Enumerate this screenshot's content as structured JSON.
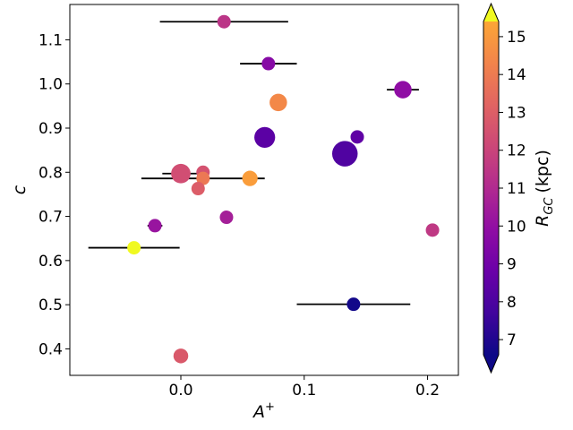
{
  "chart_data": {
    "type": "scatter",
    "title": "",
    "xlabel_base": "A",
    "xlabel_sup": "+",
    "ylabel": "c",
    "xlim": [
      -0.09,
      0.225
    ],
    "ylim": [
      0.34,
      1.18
    ],
    "xticks": [
      0.0,
      0.1,
      0.2
    ],
    "xtick_labels": [
      "0.0",
      "0.1",
      "0.2"
    ],
    "yticks": [
      0.4,
      0.5,
      0.6,
      0.7,
      0.8,
      0.9,
      1.0,
      1.1
    ],
    "ytick_labels": [
      "0.4",
      "0.5",
      "0.6",
      "0.7",
      "0.8",
      "0.9",
      "1.0",
      "1.1"
    ],
    "colorbar": {
      "label_base": "R",
      "label_sub": "GC",
      "label_unit": "(kpc)",
      "colormap": "plasma",
      "range": [
        6.6,
        15.4
      ],
      "ticks": [
        7,
        8,
        9,
        10,
        11,
        12,
        13,
        14,
        15
      ],
      "tick_labels": [
        "7",
        "8",
        "9",
        "10",
        "11",
        "12",
        "13",
        "14",
        "15"
      ],
      "extend": "both"
    },
    "points": [
      {
        "x": 0.035,
        "y": 1.141,
        "r_gc": 10.5,
        "size": 1.0,
        "xerr": 0.052
      },
      {
        "x": 0.071,
        "y": 1.046,
        "r_gc": 9.2,
        "size": 1.0,
        "xerr": 0.023
      },
      {
        "x": 0.18,
        "y": 0.987,
        "r_gc": 9.4,
        "size": 1.3,
        "xerr": 0.013
      },
      {
        "x": 0.079,
        "y": 0.958,
        "r_gc": 12.7,
        "size": 1.3
      },
      {
        "x": 0.068,
        "y": 0.879,
        "r_gc": 8.3,
        "size": 1.55
      },
      {
        "x": 0.143,
        "y": 0.88,
        "r_gc": 8.4,
        "size": 1.0
      },
      {
        "x": 0.133,
        "y": 0.842,
        "r_gc": 8.1,
        "size": 1.9
      },
      {
        "x": 0.0,
        "y": 0.797,
        "r_gc": 11.2,
        "size": 1.45,
        "xerr": 0.015
      },
      {
        "x": 0.018,
        "y": 0.8,
        "r_gc": 11.3,
        "size": 1.0
      },
      {
        "x": 0.018,
        "y": 0.786,
        "r_gc": 12.3,
        "size": 1.0,
        "xerr": 0.05
      },
      {
        "x": 0.056,
        "y": 0.786,
        "r_gc": 13.2,
        "size": 1.15
      },
      {
        "x": 0.014,
        "y": 0.763,
        "r_gc": 11.6,
        "size": 1.0
      },
      {
        "x": 0.037,
        "y": 0.698,
        "r_gc": 9.9,
        "size": 1.0
      },
      {
        "x": -0.021,
        "y": 0.679,
        "r_gc": 9.6,
        "size": 1.0,
        "xerr": 0.006
      },
      {
        "x": 0.204,
        "y": 0.669,
        "r_gc": 10.6,
        "size": 1.0
      },
      {
        "x": -0.038,
        "y": 0.629,
        "r_gc": 15.2,
        "size": 1.0,
        "xerr": 0.037
      },
      {
        "x": 0.14,
        "y": 0.501,
        "r_gc": 7.1,
        "size": 1.0,
        "xerr": 0.046
      },
      {
        "x": 0.0,
        "y": 0.384,
        "r_gc": 11.5,
        "size": 1.1
      }
    ]
  }
}
